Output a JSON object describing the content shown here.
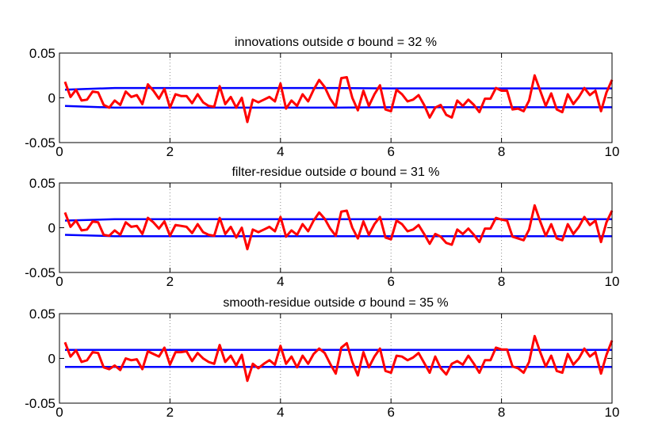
{
  "colors": {
    "bound": "#0000ff",
    "residue": "#ff0000",
    "grid": "#8c8c8c",
    "axis": "#000000"
  },
  "chart_data": [
    {
      "type": "line",
      "title": "innovations outside σ bound = 32 %",
      "xlim": [
        0,
        10
      ],
      "ylim": [
        -0.05,
        0.05
      ],
      "xticks": [
        0,
        2,
        4,
        6,
        8,
        10
      ],
      "xtick_labels": [
        "0",
        "2",
        "4",
        "6",
        "8",
        "10"
      ],
      "yticks": [
        -0.05,
        0,
        0.05
      ],
      "ytick_labels": [
        "-0.05",
        "0",
        "0.05"
      ],
      "grid": "vertical dotted",
      "series": [
        {
          "role": "upper-bound",
          "color": "#0000ff",
          "x": [
            0.1,
            1.0,
            2.0,
            3.0,
            4.0,
            5.0,
            6.0,
            7.0,
            8.0,
            9.0,
            10.0
          ],
          "y": [
            0.009,
            0.011,
            0.011,
            0.011,
            0.011,
            0.011,
            0.0105,
            0.0105,
            0.0105,
            0.0105,
            0.0105
          ]
        },
        {
          "role": "lower-bound",
          "color": "#0000ff",
          "x": [
            0.1,
            1.0,
            2.0,
            3.0,
            4.0,
            5.0,
            6.0,
            7.0,
            8.0,
            9.0,
            10.0
          ],
          "y": [
            -0.009,
            -0.011,
            -0.011,
            -0.011,
            -0.011,
            -0.011,
            -0.0105,
            -0.0105,
            -0.0105,
            -0.0105,
            -0.0105
          ]
        },
        {
          "role": "residue",
          "color": "#ff0000",
          "x": [
            0.1,
            0.2,
            0.3,
            0.4,
            0.5,
            0.6,
            0.7,
            0.8,
            0.9,
            1.0,
            1.1,
            1.2,
            1.3,
            1.4,
            1.5,
            1.6,
            1.7,
            1.8,
            1.9,
            2.0,
            2.1,
            2.2,
            2.3,
            2.4,
            2.5,
            2.6,
            2.7,
            2.8,
            2.9,
            3.0,
            3.1,
            3.2,
            3.3,
            3.4,
            3.5,
            3.6,
            3.7,
            3.8,
            3.9,
            4.0,
            4.1,
            4.2,
            4.3,
            4.4,
            4.5,
            4.6,
            4.7,
            4.8,
            4.9,
            5.0,
            5.1,
            5.2,
            5.3,
            5.4,
            5.5,
            5.6,
            5.7,
            5.8,
            5.9,
            6.0,
            6.1,
            6.2,
            6.3,
            6.4,
            6.5,
            6.6,
            6.7,
            6.8,
            6.9,
            7.0,
            7.1,
            7.2,
            7.3,
            7.4,
            7.5,
            7.6,
            7.7,
            7.8,
            7.9,
            8.0,
            8.1,
            8.2,
            8.3,
            8.4,
            8.5,
            8.6,
            8.7,
            8.8,
            8.9,
            9.0,
            9.1,
            9.2,
            9.3,
            9.4,
            9.5,
            9.6,
            9.7,
            9.8,
            9.9,
            10.0
          ],
          "y": [
            0.018,
            0.001,
            0.009,
            -0.003,
            -0.002,
            0.007,
            0.006,
            -0.008,
            -0.011,
            -0.003,
            -0.008,
            0.007,
            0.001,
            0.003,
            -0.007,
            0.015,
            0.008,
            -0.001,
            0.01,
            -0.011,
            0.004,
            0.002,
            0.002,
            -0.006,
            0.004,
            -0.005,
            -0.009,
            -0.01,
            0.013,
            -0.007,
            0.001,
            -0.011,
            0.0,
            -0.027,
            -0.002,
            -0.005,
            -0.002,
            0.001,
            -0.004,
            0.016,
            -0.012,
            -0.003,
            -0.009,
            0.004,
            -0.004,
            0.009,
            0.02,
            0.012,
            -0.001,
            -0.01,
            0.022,
            0.023,
            0.0,
            -0.014,
            0.008,
            -0.009,
            0.004,
            0.014,
            -0.013,
            -0.015,
            0.009,
            0.004,
            -0.004,
            -0.002,
            0.003,
            -0.008,
            -0.022,
            -0.011,
            -0.008,
            -0.019,
            -0.022,
            -0.003,
            -0.009,
            -0.002,
            -0.008,
            -0.016,
            -0.001,
            -0.001,
            0.011,
            0.008,
            0.008,
            -0.013,
            -0.012,
            -0.015,
            -0.003,
            0.025,
            0.008,
            -0.009,
            0.005,
            -0.013,
            -0.016,
            0.004,
            -0.007,
            0.001,
            0.011,
            0.003,
            0.008,
            -0.015,
            0.006,
            0.02
          ]
        }
      ]
    },
    {
      "type": "line",
      "title": "filter-residue outside σ bound = 31 %",
      "xlim": [
        0,
        10
      ],
      "ylim": [
        -0.05,
        0.05
      ],
      "xticks": [
        0,
        2,
        4,
        6,
        8,
        10
      ],
      "xtick_labels": [
        "0",
        "2",
        "4",
        "6",
        "8",
        "10"
      ],
      "yticks": [
        -0.05,
        0,
        0.05
      ],
      "ytick_labels": [
        "-0.05",
        "0",
        "0.05"
      ],
      "grid": "vertical dotted",
      "series": [
        {
          "role": "upper-bound",
          "color": "#0000ff",
          "x": [
            0.1,
            1.0,
            2.0,
            3.0,
            4.0,
            5.0,
            6.0,
            7.0,
            8.0,
            9.0,
            10.0
          ],
          "y": [
            0.008,
            0.0095,
            0.0095,
            0.0095,
            0.0095,
            0.0095,
            0.0095,
            0.0095,
            0.0095,
            0.0095,
            0.0095
          ]
        },
        {
          "role": "lower-bound",
          "color": "#0000ff",
          "x": [
            0.1,
            1.0,
            2.0,
            3.0,
            4.0,
            5.0,
            6.0,
            7.0,
            8.0,
            9.0,
            10.0
          ],
          "y": [
            -0.008,
            -0.0095,
            -0.0095,
            -0.0095,
            -0.0095,
            -0.0095,
            -0.0095,
            -0.0095,
            -0.0095,
            -0.0095,
            -0.0095
          ]
        },
        {
          "role": "residue",
          "color": "#ff0000",
          "x": [
            0.1,
            0.2,
            0.3,
            0.4,
            0.5,
            0.6,
            0.7,
            0.8,
            0.9,
            1.0,
            1.1,
            1.2,
            1.3,
            1.4,
            1.5,
            1.6,
            1.7,
            1.8,
            1.9,
            2.0,
            2.1,
            2.2,
            2.3,
            2.4,
            2.5,
            2.6,
            2.7,
            2.8,
            2.9,
            3.0,
            3.1,
            3.2,
            3.3,
            3.4,
            3.5,
            3.6,
            3.7,
            3.8,
            3.9,
            4.0,
            4.1,
            4.2,
            4.3,
            4.4,
            4.5,
            4.6,
            4.7,
            4.8,
            4.9,
            5.0,
            5.1,
            5.2,
            5.3,
            5.4,
            5.5,
            5.6,
            5.7,
            5.8,
            5.9,
            6.0,
            6.1,
            6.2,
            6.3,
            6.4,
            6.5,
            6.6,
            6.7,
            6.8,
            6.9,
            7.0,
            7.1,
            7.2,
            7.3,
            7.4,
            7.5,
            7.6,
            7.7,
            7.8,
            7.9,
            8.0,
            8.1,
            8.2,
            8.3,
            8.4,
            8.5,
            8.6,
            8.7,
            8.8,
            8.9,
            9.0,
            9.1,
            9.2,
            9.3,
            9.4,
            9.5,
            9.6,
            9.7,
            9.8,
            9.9,
            10.0
          ],
          "y": [
            0.017,
            0.001,
            0.008,
            -0.003,
            -0.002,
            0.007,
            0.006,
            -0.008,
            -0.009,
            -0.003,
            -0.008,
            0.006,
            0.001,
            0.002,
            -0.007,
            0.011,
            0.006,
            -0.001,
            0.007,
            -0.009,
            0.003,
            0.002,
            0.001,
            -0.006,
            0.004,
            -0.005,
            -0.008,
            -0.009,
            0.011,
            -0.007,
            0.001,
            -0.011,
            0.0,
            -0.024,
            -0.002,
            -0.005,
            -0.002,
            0.001,
            -0.004,
            0.012,
            -0.01,
            -0.003,
            -0.008,
            0.004,
            -0.004,
            0.008,
            0.017,
            0.01,
            -0.001,
            -0.009,
            0.018,
            0.019,
            0.0,
            -0.012,
            0.007,
            -0.008,
            0.004,
            0.012,
            -0.011,
            -0.013,
            0.008,
            0.004,
            -0.004,
            -0.002,
            0.003,
            -0.007,
            -0.018,
            -0.007,
            -0.01,
            -0.017,
            -0.019,
            -0.002,
            -0.007,
            -0.001,
            -0.008,
            -0.016,
            -0.001,
            -0.001,
            0.011,
            0.009,
            0.008,
            -0.01,
            -0.012,
            -0.014,
            -0.002,
            0.025,
            0.007,
            -0.009,
            0.004,
            -0.012,
            -0.014,
            0.004,
            -0.007,
            0.001,
            0.012,
            0.003,
            0.008,
            -0.016,
            0.006,
            0.019
          ]
        }
      ]
    },
    {
      "type": "line",
      "title": "smooth-residue outside σ bound = 35 %",
      "xlim": [
        0,
        10
      ],
      "ylim": [
        -0.05,
        0.05
      ],
      "xticks": [
        0,
        2,
        4,
        6,
        8,
        10
      ],
      "xtick_labels": [
        "0",
        "2",
        "4",
        "6",
        "8",
        "10"
      ],
      "yticks": [
        -0.05,
        0,
        0.05
      ],
      "ytick_labels": [
        "-0.05",
        "0",
        "0.05"
      ],
      "grid": "vertical dotted",
      "series": [
        {
          "role": "upper-bound",
          "color": "#0000ff",
          "x": [
            0.1,
            1.0,
            2.0,
            3.0,
            4.0,
            5.0,
            6.0,
            7.0,
            8.0,
            9.0,
            10.0
          ],
          "y": [
            0.0095,
            0.0095,
            0.0095,
            0.0095,
            0.0095,
            0.0095,
            0.0095,
            0.0095,
            0.0095,
            0.0095,
            0.0095
          ]
        },
        {
          "role": "lower-bound",
          "color": "#0000ff",
          "x": [
            0.1,
            1.0,
            2.0,
            3.0,
            4.0,
            5.0,
            6.0,
            7.0,
            8.0,
            9.0,
            10.0
          ],
          "y": [
            -0.0095,
            -0.0095,
            -0.0095,
            -0.0095,
            -0.0095,
            -0.0095,
            -0.0095,
            -0.0095,
            -0.0095,
            -0.0095,
            -0.0095
          ]
        },
        {
          "role": "residue",
          "color": "#ff0000",
          "x": [
            0.1,
            0.2,
            0.3,
            0.4,
            0.5,
            0.6,
            0.7,
            0.8,
            0.9,
            1.0,
            1.1,
            1.2,
            1.3,
            1.4,
            1.5,
            1.6,
            1.7,
            1.8,
            1.9,
            2.0,
            2.1,
            2.2,
            2.3,
            2.4,
            2.5,
            2.6,
            2.7,
            2.8,
            2.9,
            3.0,
            3.1,
            3.2,
            3.3,
            3.4,
            3.5,
            3.6,
            3.7,
            3.8,
            3.9,
            4.0,
            4.1,
            4.2,
            4.3,
            4.4,
            4.5,
            4.6,
            4.7,
            4.8,
            4.9,
            5.0,
            5.1,
            5.2,
            5.3,
            5.4,
            5.5,
            5.6,
            5.7,
            5.8,
            5.9,
            6.0,
            6.1,
            6.2,
            6.3,
            6.4,
            6.5,
            6.6,
            6.7,
            6.8,
            6.9,
            7.0,
            7.1,
            7.2,
            7.3,
            7.4,
            7.5,
            7.6,
            7.7,
            7.8,
            7.9,
            8.0,
            8.1,
            8.2,
            8.3,
            8.4,
            8.5,
            8.6,
            8.7,
            8.8,
            8.9,
            9.0,
            9.1,
            9.2,
            9.3,
            9.4,
            9.5,
            9.6,
            9.7,
            9.8,
            9.9,
            10.0
          ],
          "y": [
            0.018,
            0.002,
            0.009,
            -0.004,
            -0.002,
            0.007,
            0.006,
            -0.01,
            -0.012,
            -0.008,
            -0.013,
            0.0,
            -0.002,
            -0.001,
            -0.012,
            0.008,
            0.005,
            0.002,
            0.012,
            -0.007,
            0.007,
            0.007,
            0.008,
            -0.003,
            0.006,
            0.0,
            -0.004,
            -0.006,
            0.015,
            -0.004,
            0.003,
            -0.008,
            0.004,
            -0.025,
            -0.006,
            -0.011,
            -0.006,
            -0.002,
            -0.007,
            0.014,
            -0.006,
            0.002,
            -0.01,
            0.003,
            -0.006,
            0.005,
            0.011,
            0.006,
            -0.006,
            -0.017,
            0.012,
            0.017,
            -0.004,
            -0.019,
            0.007,
            -0.01,
            0.002,
            0.011,
            -0.014,
            -0.016,
            0.003,
            0.002,
            -0.002,
            0.001,
            0.006,
            -0.005,
            -0.016,
            0.002,
            -0.011,
            -0.018,
            -0.006,
            -0.003,
            -0.007,
            0.003,
            -0.006,
            -0.016,
            -0.002,
            -0.002,
            0.012,
            0.01,
            0.01,
            -0.009,
            -0.011,
            -0.016,
            -0.004,
            0.025,
            0.007,
            -0.009,
            0.003,
            -0.014,
            -0.016,
            0.005,
            -0.007,
            0.0,
            0.011,
            0.002,
            0.007,
            -0.017,
            0.004,
            0.02
          ]
        }
      ]
    }
  ]
}
